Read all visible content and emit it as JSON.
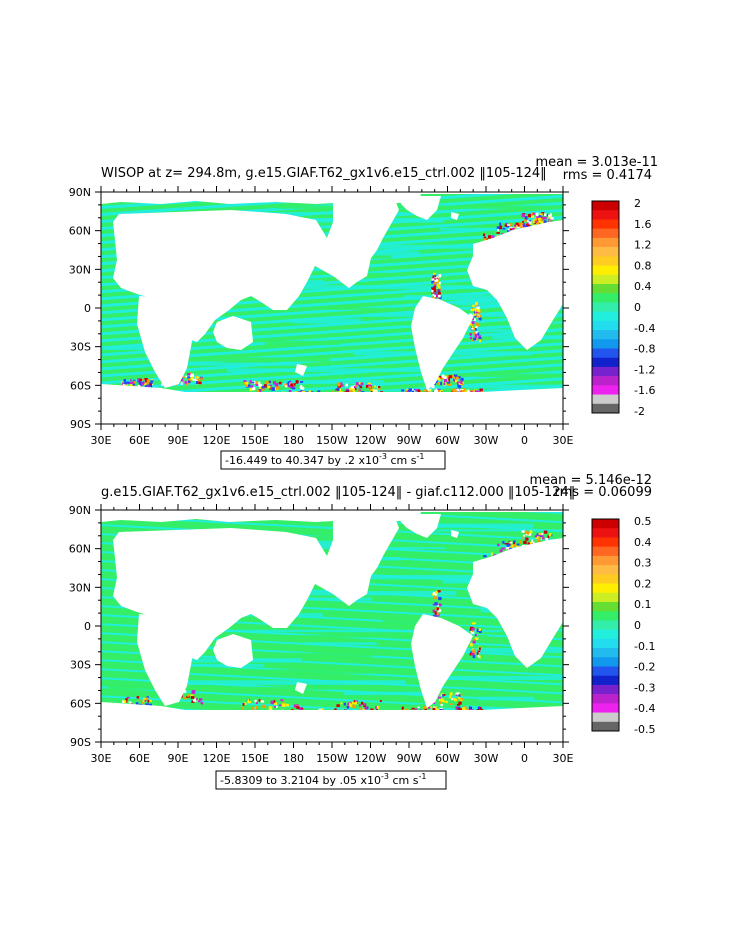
{
  "colors": {
    "land": "#ffffff",
    "frame": "#000000",
    "ocean_green": "#33ee66",
    "ocean_cyan": "#22eedd",
    "noise": [
      "#cc0000",
      "#2244ff",
      "#cc22cc",
      "#ff9900",
      "#ffee00",
      "#ffffff"
    ]
  },
  "x_tick_labels": [
    "30E",
    "60E",
    "90E",
    "120E",
    "150E",
    "180",
    "150W",
    "120W",
    "90W",
    "60W",
    "30W",
    "0",
    "30E"
  ],
  "y_tick_labels": [
    "90N",
    "60N",
    "30N",
    "0",
    "30S",
    "60S",
    "90S"
  ],
  "panels": [
    {
      "title": "WISOP at z= 294.8m, g.e15.GIAF.T62_gx1v6.e15_ctrl.002 ‖105-124‖",
      "mean": "mean = 3.013e-11",
      "rms": "rms = 0.4174",
      "range_text": "-16.449 to 40.347 by .2 x10",
      "range_exp": "-3",
      "range_units": " cm s",
      "range_units_exp": "-1",
      "colorbar": {
        "labels": [
          "2",
          "1.6",
          "1.2",
          "0.8",
          "0.4",
          "0",
          "-0.4",
          "-0.8",
          "-1.2",
          "-1.6",
          "-2"
        ],
        "colors": [
          "#cc0000",
          "#ee1111",
          "#ff3300",
          "#ff6622",
          "#ff9933",
          "#ffbb44",
          "#ffcc22",
          "#ffee00",
          "#ccee22",
          "#66dd33",
          "#33ee66",
          "#33eeaa",
          "#22eedd",
          "#22ddee",
          "#22bbee",
          "#1199ee",
          "#2255ee",
          "#1122cc",
          "#7722cc",
          "#bb22cc",
          "#ee22ee",
          "#cccccc",
          "#666666"
        ]
      }
    },
    {
      "title": "g.e15.GIAF.T62_gx1v6.e15_ctrl.002 ‖105-124‖ - giaf.c112.000 ‖105-124‖",
      "mean": "mean = 5.146e-12",
      "rms": "rms = 0.06099",
      "range_text": "-5.8309 to 3.2104 by .05 x10",
      "range_exp": "-3",
      "range_units": " cm s",
      "range_units_exp": "-1",
      "colorbar": {
        "labels": [
          "0.5",
          "0.4",
          "0.3",
          "0.2",
          "0.1",
          "0",
          "-0.1",
          "-0.2",
          "-0.3",
          "-0.4",
          "-0.5"
        ],
        "colors": [
          "#cc0000",
          "#ee1111",
          "#ff3300",
          "#ff6622",
          "#ff9933",
          "#ffbb44",
          "#ffcc22",
          "#ffee00",
          "#ccee22",
          "#66dd33",
          "#33ee66",
          "#33eeaa",
          "#22eedd",
          "#22ddee",
          "#22bbee",
          "#1199ee",
          "#2255ee",
          "#1122cc",
          "#7722cc",
          "#bb22cc",
          "#ee22ee",
          "#cccccc",
          "#666666"
        ]
      }
    }
  ]
}
